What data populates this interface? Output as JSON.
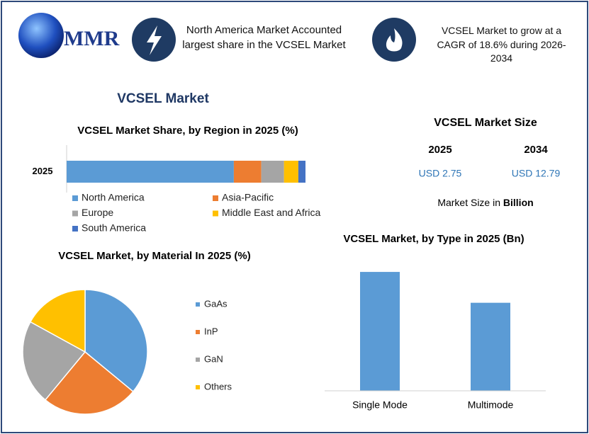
{
  "header": {
    "logo": "MMR",
    "fact_1": "North America Market Accounted largest share in the VCSEL Market",
    "fact_2": "VCSEL Market to grow at a CAGR of 18.6% during 2026-2034"
  },
  "title": "VCSEL Market",
  "market_size": {
    "title": "VCSEL Market Size",
    "items": [
      {
        "year": "2025",
        "value": "USD 2.75"
      },
      {
        "year": "2034",
        "value": "USD 12.79"
      }
    ],
    "note": "Market Size in",
    "note_unit": "Billion"
  },
  "chart_data": [
    {
      "type": "bar",
      "orientation": "horizontal",
      "stacked": true,
      "title": "VCSEL Market Share, by Region in 2025 (%)",
      "categories": [
        "2025"
      ],
      "xlim": [
        0,
        100
      ],
      "series": [
        {
          "name": "North America",
          "color": "#5b9bd5",
          "values": [
            70
          ]
        },
        {
          "name": "Asia-Pacific",
          "color": "#ed7d31",
          "values": [
            11.5
          ]
        },
        {
          "name": "Europe",
          "color": "#a5a5a5",
          "values": [
            9.5
          ]
        },
        {
          "name": "Middle East and Africa",
          "color": "#ffc000",
          "values": [
            6
          ]
        },
        {
          "name": "South America",
          "color": "#4472c4",
          "values": [
            3
          ]
        }
      ]
    },
    {
      "type": "pie",
      "title": "VCSEL Market, by Material In 2025 (%)",
      "categories": [
        "GaAs",
        "InP",
        "GaN",
        "Others"
      ],
      "values": [
        36,
        25,
        22,
        17
      ],
      "colors": [
        "#5b9bd5",
        "#ed7d31",
        "#a5a5a5",
        "#ffc000"
      ]
    },
    {
      "type": "bar",
      "title": "VCSEL Market, by Type in 2025 (Bn)",
      "categories": [
        "Single Mode",
        "Multimode"
      ],
      "values": [
        1.58,
        1.17
      ],
      "color": "#5b9bd5",
      "ylim": [
        0,
        1.75
      ]
    }
  ]
}
